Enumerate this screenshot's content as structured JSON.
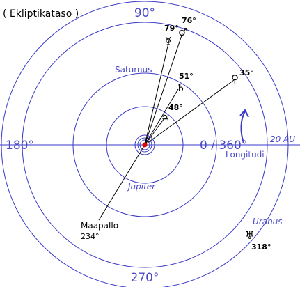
{
  "title": "( Ekliptikataso )",
  "axes": {
    "top": "90°",
    "left": "180°",
    "right": "0 / 360°",
    "bottom": "270°",
    "longitude": "Longitudi",
    "scale": "20 AU"
  },
  "orbits": {
    "saturn": "Saturnus",
    "jupiter": "Jupiter",
    "uranus": "Uranus"
  },
  "planets": [
    {
      "symbol": "☿",
      "label": "79°"
    },
    {
      "symbol": "♂",
      "label": "76°"
    },
    {
      "symbol": "♀",
      "label": "35°"
    },
    {
      "symbol": "♄",
      "label": "51°"
    },
    {
      "symbol": "♃",
      "label": "48°"
    },
    {
      "symbol": "♅",
      "label": "318°"
    }
  ],
  "earth": {
    "name": "Maapallo",
    "label": "234°"
  }
}
